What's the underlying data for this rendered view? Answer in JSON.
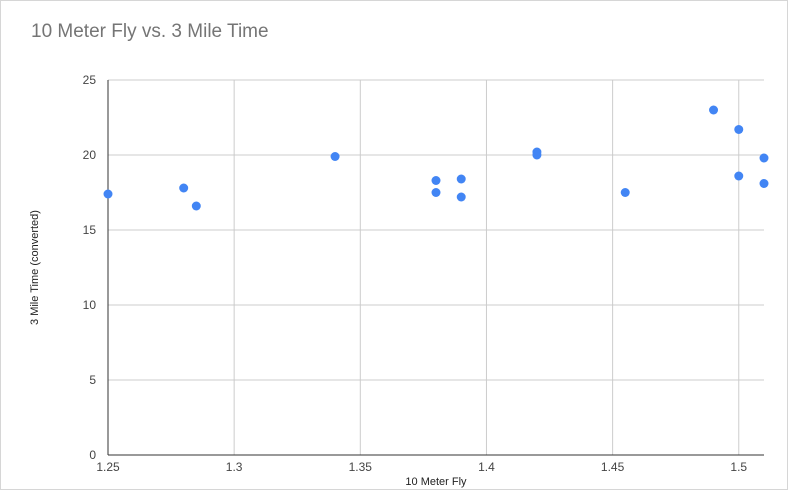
{
  "chart_data": {
    "type": "scatter",
    "title": "10 Meter Fly vs. 3 Mile Time",
    "xlabel": "10 Meter Fly",
    "ylabel": "3 Mile Time (converted)",
    "xlim": [
      1.25,
      1.51
    ],
    "ylim": [
      0,
      25
    ],
    "xticks": [
      "1.25",
      "1.3",
      "1.35",
      "1.4",
      "1.45",
      "1.5"
    ],
    "yticks": [
      "0",
      "5",
      "10",
      "15",
      "20",
      "25"
    ],
    "grid": true,
    "legend": "none",
    "color": "#4285f4",
    "points": [
      {
        "x": 1.25,
        "y": 17.4
      },
      {
        "x": 1.28,
        "y": 17.8
      },
      {
        "x": 1.285,
        "y": 16.6
      },
      {
        "x": 1.34,
        "y": 19.9
      },
      {
        "x": 1.38,
        "y": 18.3
      },
      {
        "x": 1.38,
        "y": 17.5
      },
      {
        "x": 1.39,
        "y": 18.4
      },
      {
        "x": 1.39,
        "y": 17.2
      },
      {
        "x": 1.42,
        "y": 20.2
      },
      {
        "x": 1.42,
        "y": 20.0
      },
      {
        "x": 1.455,
        "y": 17.5
      },
      {
        "x": 1.49,
        "y": 23.0
      },
      {
        "x": 1.5,
        "y": 21.7
      },
      {
        "x": 1.5,
        "y": 18.6
      },
      {
        "x": 1.51,
        "y": 19.8
      },
      {
        "x": 1.51,
        "y": 18.1
      }
    ]
  }
}
